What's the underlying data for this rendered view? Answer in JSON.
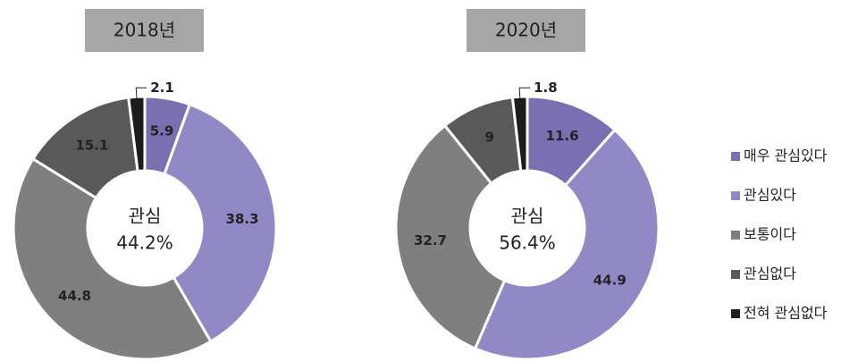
{
  "chart_data": [
    {
      "type": "pie",
      "donut": true,
      "title": "2018년",
      "center_label": "관심",
      "center_value": "44.2%",
      "categories": [
        "매우 관심있다",
        "관심있다",
        "보통이다",
        "관심없다",
        "전혀 관심없다"
      ],
      "values": [
        5.9,
        38.3,
        44.8,
        15.1,
        2.1
      ],
      "colors": [
        "#7a70b1",
        "#9189c5",
        "#7f7f7f",
        "#595959",
        "#1c1c1c"
      ],
      "legend": true
    },
    {
      "type": "pie",
      "donut": true,
      "title": "2020년",
      "center_label": "관심",
      "center_value": "56.4%",
      "categories": [
        "매우 관심있다",
        "관심있다",
        "보통이다",
        "관심없다",
        "전혀 관심없다"
      ],
      "values": [
        11.6,
        44.9,
        32.7,
        9.0,
        1.8
      ],
      "colors": [
        "#7a70b1",
        "#9189c5",
        "#7f7f7f",
        "#595959",
        "#1c1c1c"
      ],
      "legend": false
    }
  ]
}
